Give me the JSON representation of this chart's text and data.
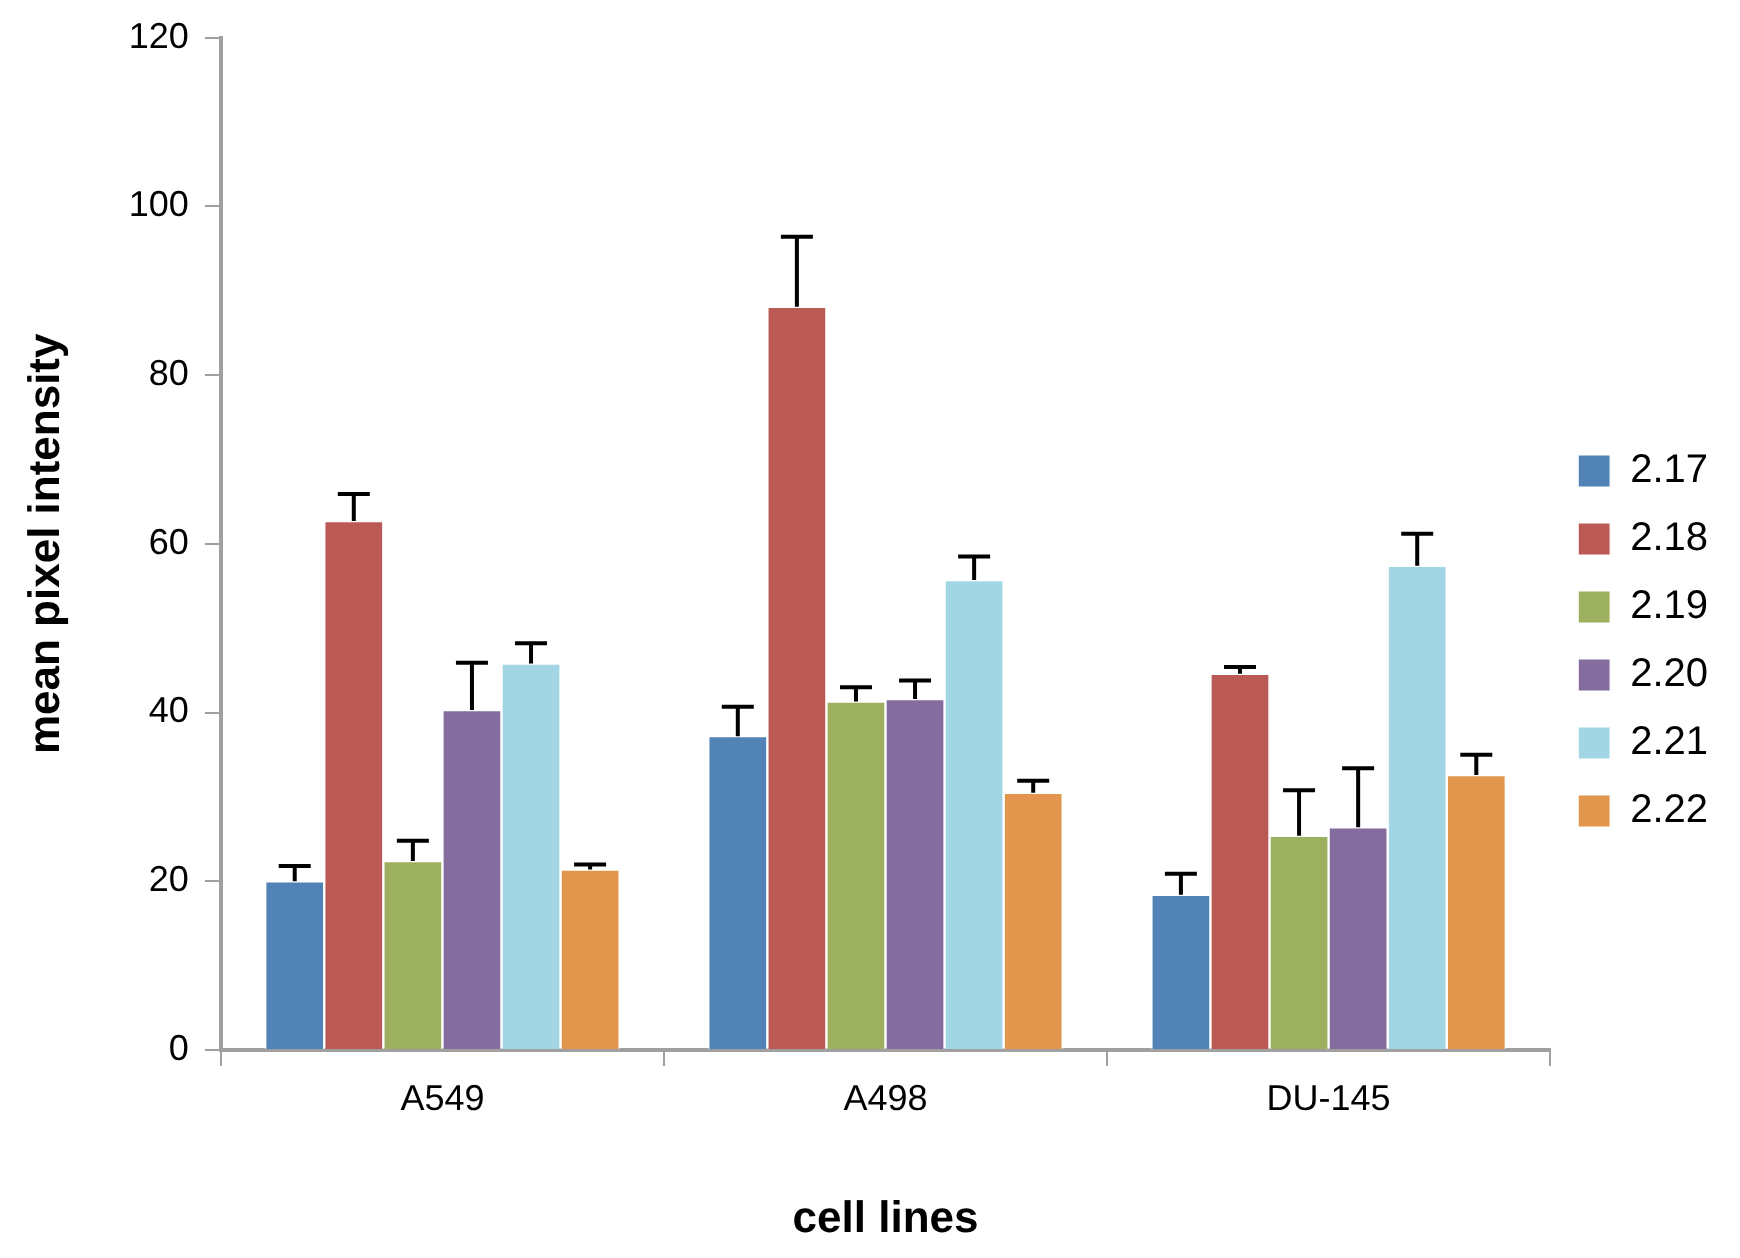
{
  "chart_data": {
    "type": "bar",
    "xlabel": "cell lines",
    "ylabel": "mean pixel intensity",
    "categories": [
      "A549",
      "A498",
      "DU-145"
    ],
    "series": [
      {
        "name": "2.17",
        "color": "#5283b7",
        "values": [
          20,
          37.2,
          18.4
        ],
        "errors": [
          [
            20,
            21.8
          ],
          [
            37.2,
            40.7
          ],
          [
            18.4,
            20.9
          ]
        ]
      },
      {
        "name": "2.18",
        "color": "#bb5a55",
        "values": [
          62.7,
          88.1,
          44.6
        ],
        "errors": [
          [
            62.7,
            65.9
          ],
          [
            88.1,
            96.4
          ],
          [
            44.6,
            45.4
          ]
        ]
      },
      {
        "name": "2.19",
        "color": "#9db05f",
        "values": [
          22.4,
          41.3,
          25.4
        ],
        "errors": [
          [
            22.4,
            24.8
          ],
          [
            41.3,
            43
          ],
          [
            25.4,
            30.8
          ]
        ]
      },
      {
        "name": "2.20",
        "color": "#846d9e",
        "values": [
          40.3,
          41.6,
          26.4
        ],
        "errors": [
          [
            40.3,
            45.9
          ],
          [
            41.6,
            43.8
          ],
          [
            26.4,
            33.4
          ]
        ]
      },
      {
        "name": "2.21",
        "color": "#a3d6e4",
        "values": [
          45.8,
          55.7,
          57.4
        ],
        "errors": [
          [
            45.8,
            48.2
          ],
          [
            55.7,
            58.5
          ],
          [
            57.4,
            61.2
          ]
        ]
      },
      {
        "name": "2.22",
        "color": "#e2964d",
        "values": [
          21.4,
          30.5,
          32.6
        ],
        "errors": [
          [
            21.4,
            22
          ],
          [
            30.5,
            31.9
          ],
          [
            32.6,
            35
          ]
        ]
      }
    ],
    "ylim": [
      0,
      120
    ],
    "yticks": [
      0,
      20,
      40,
      60,
      80,
      100,
      120
    ],
    "grid": false,
    "legend": "right"
  }
}
